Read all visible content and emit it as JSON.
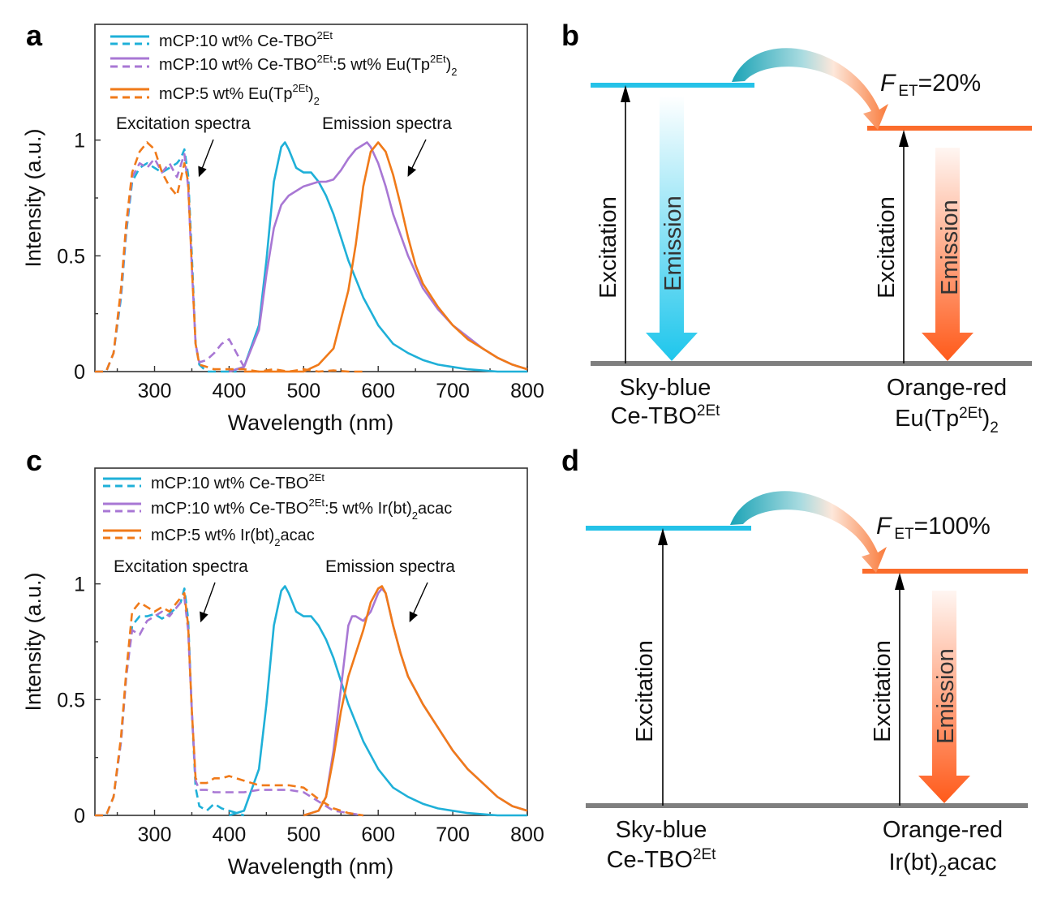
{
  "colors": {
    "blue": "#1fb0d8",
    "purple": "#a877d4",
    "orange": "#f07a19",
    "diag_blue": "#25c2e8",
    "diag_orange": "#fb6c2c",
    "ground": "#7f7f7f"
  },
  "chart_data": [
    {
      "panel": "a",
      "type": "line",
      "xlabel": "Wavelength (nm)",
      "ylabel": "Intensity (a.u.)",
      "xlim": [
        220,
        800
      ],
      "ylim": [
        0,
        1.5
      ],
      "xticks": [
        "300",
        "400",
        "500",
        "600",
        "700",
        "800"
      ],
      "yticks": [
        "0",
        "0.5",
        "1"
      ],
      "legend": [
        {
          "main": "mCP:10 wt% Ce-TBO",
          "sup": "2Et",
          "tail": "",
          "sub": "",
          "end": "",
          "color": "blue"
        },
        {
          "main": "mCP:10 wt% Ce-TBO",
          "sup": "2Et",
          "tail": ":5 wt% Eu(Tp",
          "sup2": "2Et",
          "tail2": ")",
          "sub": "2",
          "color": "purple"
        },
        {
          "main": "mCP:5 wt% Eu(Tp",
          "sup": "2Et",
          "tail": ")",
          "sub": "2",
          "end": "",
          "color": "orange"
        }
      ],
      "annotations": {
        "excitation": "Excitation spectra",
        "emission": "Emission spectra"
      },
      "series": [
        {
          "name": "Ce-TBO excitation",
          "color": "blue",
          "dash": true,
          "x": [
            220,
            235,
            245,
            255,
            262,
            270,
            280,
            290,
            300,
            310,
            320,
            330,
            335,
            340,
            345,
            350,
            355,
            360,
            370,
            380,
            390,
            400,
            410
          ],
          "y": [
            0,
            0,
            0.08,
            0.32,
            0.6,
            0.82,
            0.88,
            0.9,
            0.88,
            0.86,
            0.88,
            0.9,
            0.92,
            0.96,
            0.85,
            0.5,
            0.12,
            0.03,
            0,
            0,
            0,
            0,
            0
          ]
        },
        {
          "name": "Ce-TBO emission",
          "color": "blue",
          "dash": false,
          "x": [
            400,
            420,
            440,
            450,
            460,
            470,
            475,
            480,
            490,
            500,
            510,
            520,
            530,
            540,
            550,
            560,
            580,
            600,
            620,
            640,
            660,
            680,
            700,
            720,
            740,
            760,
            800
          ],
          "y": [
            0,
            0.02,
            0.2,
            0.48,
            0.82,
            0.97,
            0.99,
            0.96,
            0.88,
            0.86,
            0.86,
            0.82,
            0.76,
            0.68,
            0.58,
            0.48,
            0.32,
            0.2,
            0.12,
            0.08,
            0.05,
            0.03,
            0.02,
            0.01,
            0.005,
            0,
            0
          ]
        },
        {
          "name": "Ce-TBO:Eu excitation",
          "color": "purple",
          "dash": true,
          "x": [
            220,
            235,
            245,
            255,
            262,
            270,
            280,
            290,
            300,
            310,
            320,
            330,
            340,
            345,
            350,
            355,
            360,
            370,
            380,
            390,
            400,
            410,
            420
          ],
          "y": [
            0,
            0,
            0.08,
            0.34,
            0.62,
            0.84,
            0.9,
            0.88,
            0.92,
            0.86,
            0.9,
            0.84,
            0.94,
            0.8,
            0.45,
            0.12,
            0.04,
            0.05,
            0.08,
            0.12,
            0.14,
            0.08,
            0.02
          ]
        },
        {
          "name": "Ce-TBO:Eu emission",
          "color": "purple",
          "dash": false,
          "x": [
            400,
            420,
            440,
            450,
            460,
            470,
            480,
            490,
            500,
            510,
            520,
            530,
            540,
            550,
            560,
            570,
            580,
            585,
            590,
            600,
            610,
            620,
            640,
            660,
            680,
            700,
            720,
            740,
            760,
            780,
            800
          ],
          "y": [
            0,
            0.02,
            0.18,
            0.42,
            0.62,
            0.72,
            0.76,
            0.78,
            0.8,
            0.81,
            0.82,
            0.82,
            0.83,
            0.87,
            0.92,
            0.96,
            0.98,
            0.99,
            0.97,
            0.9,
            0.8,
            0.68,
            0.5,
            0.36,
            0.27,
            0.2,
            0.15,
            0.1,
            0.06,
            0.03,
            0.01
          ]
        },
        {
          "name": "Eu excitation",
          "color": "orange",
          "dash": true,
          "x": [
            220,
            235,
            245,
            255,
            262,
            270,
            280,
            290,
            300,
            310,
            320,
            330,
            340,
            345,
            350,
            355,
            360,
            380,
            400,
            420,
            440,
            460,
            480,
            500,
            520,
            540,
            560,
            580
          ],
          "y": [
            0,
            0,
            0.08,
            0.36,
            0.64,
            0.86,
            0.95,
            0.99,
            0.96,
            0.86,
            0.8,
            0.76,
            0.9,
            0.82,
            0.45,
            0.12,
            0.03,
            0.01,
            0.01,
            0.01,
            0,
            0.01,
            0,
            0.01,
            0,
            0.005,
            0,
            0
          ]
        },
        {
          "name": "Eu emission",
          "color": "orange",
          "dash": false,
          "x": [
            420,
            500,
            520,
            540,
            560,
            570,
            580,
            590,
            600,
            610,
            620,
            630,
            640,
            650,
            660,
            680,
            700,
            720,
            740,
            760,
            780,
            800
          ],
          "y": [
            0,
            0,
            0.03,
            0.1,
            0.35,
            0.55,
            0.8,
            0.95,
            0.99,
            0.95,
            0.85,
            0.72,
            0.58,
            0.46,
            0.38,
            0.28,
            0.2,
            0.14,
            0.1,
            0.06,
            0.03,
            0.01
          ]
        }
      ]
    },
    {
      "panel": "c",
      "type": "line",
      "xlabel": "Wavelength (nm)",
      "ylabel": "Intensity (a.u.)",
      "xlim": [
        220,
        800
      ],
      "ylim": [
        0,
        1.5
      ],
      "xticks": [
        "300",
        "400",
        "500",
        "600",
        "700",
        "800"
      ],
      "yticks": [
        "0",
        "0.5",
        "1"
      ],
      "legend": [
        {
          "main": "mCP:10 wt% Ce-TBO",
          "sup": "2Et",
          "tail": "",
          "sub": "",
          "end": "",
          "color": "blue"
        },
        {
          "main": "mCP:10 wt% Ce-TBO",
          "sup": "2Et",
          "tail": ":5 wt% Ir(bt)",
          "sub": "2",
          "end": "acac",
          "color": "purple"
        },
        {
          "main": "mCP:5 wt% Ir(bt)",
          "sup": "",
          "tail": "",
          "sub": "2",
          "end": "acac",
          "color": "orange"
        }
      ],
      "annotations": {
        "excitation": "Excitation spectra",
        "emission": "Emission spectra"
      },
      "series": [
        {
          "name": "Ce-TBO excitation",
          "color": "blue",
          "dash": true,
          "x": [
            220,
            235,
            245,
            255,
            262,
            270,
            280,
            290,
            300,
            310,
            320,
            330,
            335,
            340,
            345,
            350,
            355,
            360,
            370,
            380,
            390,
            400,
            410,
            420
          ],
          "y": [
            0,
            0,
            0.08,
            0.32,
            0.6,
            0.82,
            0.86,
            0.86,
            0.87,
            0.85,
            0.87,
            0.9,
            0.92,
            0.98,
            0.85,
            0.45,
            0.12,
            0.04,
            0.02,
            0.05,
            0.03,
            0.02,
            0.01,
            0
          ]
        },
        {
          "name": "Ce-TBO emission",
          "color": "blue",
          "dash": false,
          "x": [
            400,
            420,
            440,
            450,
            460,
            470,
            475,
            480,
            490,
            500,
            510,
            520,
            530,
            540,
            550,
            560,
            580,
            600,
            620,
            640,
            660,
            680,
            700,
            720,
            740,
            760,
            800
          ],
          "y": [
            0,
            0.02,
            0.2,
            0.48,
            0.82,
            0.97,
            0.99,
            0.96,
            0.88,
            0.86,
            0.86,
            0.82,
            0.76,
            0.68,
            0.58,
            0.48,
            0.32,
            0.2,
            0.12,
            0.08,
            0.05,
            0.03,
            0.02,
            0.01,
            0.005,
            0,
            0
          ]
        },
        {
          "name": "Ce-TBO:Ir excitation",
          "color": "purple",
          "dash": true,
          "x": [
            220,
            235,
            245,
            255,
            262,
            270,
            280,
            290,
            300,
            310,
            320,
            330,
            340,
            345,
            350,
            355,
            360,
            370,
            380,
            390,
            400,
            420,
            440,
            460,
            480,
            500,
            520,
            540,
            560,
            580
          ],
          "y": [
            0,
            0,
            0.08,
            0.32,
            0.6,
            0.8,
            0.78,
            0.84,
            0.86,
            0.88,
            0.86,
            0.9,
            0.94,
            0.8,
            0.45,
            0.15,
            0.11,
            0.11,
            0.1,
            0.1,
            0.1,
            0.1,
            0.11,
            0.11,
            0.11,
            0.1,
            0.06,
            0.02,
            0.01,
            0
          ]
        },
        {
          "name": "Ce-TBO:Ir emission",
          "color": "purple",
          "dash": false,
          "x": [
            500,
            520,
            530,
            540,
            550,
            560,
            565,
            570,
            575,
            580,
            590,
            600,
            605,
            610,
            620,
            630,
            640,
            650,
            660,
            680,
            700,
            720,
            740,
            760,
            780,
            800
          ],
          "y": [
            0,
            0.02,
            0.08,
            0.28,
            0.55,
            0.82,
            0.86,
            0.86,
            0.85,
            0.84,
            0.88,
            0.96,
            0.98,
            0.96,
            0.82,
            0.7,
            0.6,
            0.54,
            0.48,
            0.38,
            0.28,
            0.2,
            0.14,
            0.08,
            0.04,
            0.02
          ]
        },
        {
          "name": "Ir excitation",
          "color": "orange",
          "dash": true,
          "x": [
            220,
            235,
            245,
            255,
            262,
            270,
            280,
            290,
            300,
            310,
            320,
            330,
            340,
            345,
            350,
            355,
            360,
            370,
            380,
            390,
            400,
            420,
            440,
            460,
            480,
            500,
            520,
            540,
            560,
            580
          ],
          "y": [
            0,
            0,
            0.08,
            0.34,
            0.62,
            0.88,
            0.92,
            0.9,
            0.88,
            0.9,
            0.88,
            0.92,
            0.96,
            0.82,
            0.45,
            0.16,
            0.14,
            0.14,
            0.16,
            0.16,
            0.17,
            0.15,
            0.13,
            0.13,
            0.13,
            0.12,
            0.07,
            0.03,
            0.01,
            0
          ]
        },
        {
          "name": "Ir emission",
          "color": "orange",
          "dash": false,
          "x": [
            500,
            520,
            530,
            540,
            550,
            560,
            570,
            580,
            590,
            600,
            605,
            610,
            620,
            630,
            640,
            650,
            660,
            680,
            700,
            720,
            740,
            760,
            780,
            800
          ],
          "y": [
            0,
            0.02,
            0.08,
            0.25,
            0.45,
            0.6,
            0.7,
            0.8,
            0.92,
            0.98,
            0.99,
            0.96,
            0.82,
            0.7,
            0.6,
            0.54,
            0.48,
            0.38,
            0.28,
            0.2,
            0.14,
            0.08,
            0.04,
            0.02
          ]
        }
      ]
    }
  ],
  "panel_labels": {
    "a": "a",
    "b": "b",
    "c": "c",
    "d": "d"
  },
  "diagram_b": {
    "fet_symbol": "F",
    "fet_sub": "ET",
    "fet_value": "=20%",
    "excitation_left": "Excitation",
    "emission_left": "Emission",
    "excitation_right": "Excitation",
    "emission_right": "Emission",
    "donor_line1": "Sky-blue",
    "donor_line2_main": "Ce-TBO",
    "donor_line2_sup": "2Et",
    "acceptor_line1": "Orange-red",
    "acceptor_line2_main": "Eu(Tp",
    "acceptor_line2_sup": "2Et",
    "acceptor_line2_tail": ")",
    "acceptor_line2_sub": "2"
  },
  "diagram_d": {
    "fet_symbol": "F",
    "fet_sub": "ET",
    "fet_value": "=100%",
    "excitation_left": "Excitation",
    "excitation_right": "Excitation",
    "emission_right": "Emission",
    "donor_line1": "Sky-blue",
    "donor_line2_main": "Ce-TBO",
    "donor_line2_sup": "2Et",
    "acceptor_line1": "Orange-red",
    "acceptor_line2_main": "Ir(bt)",
    "acceptor_line2_sub": "2",
    "acceptor_line2_tail": "acac"
  }
}
